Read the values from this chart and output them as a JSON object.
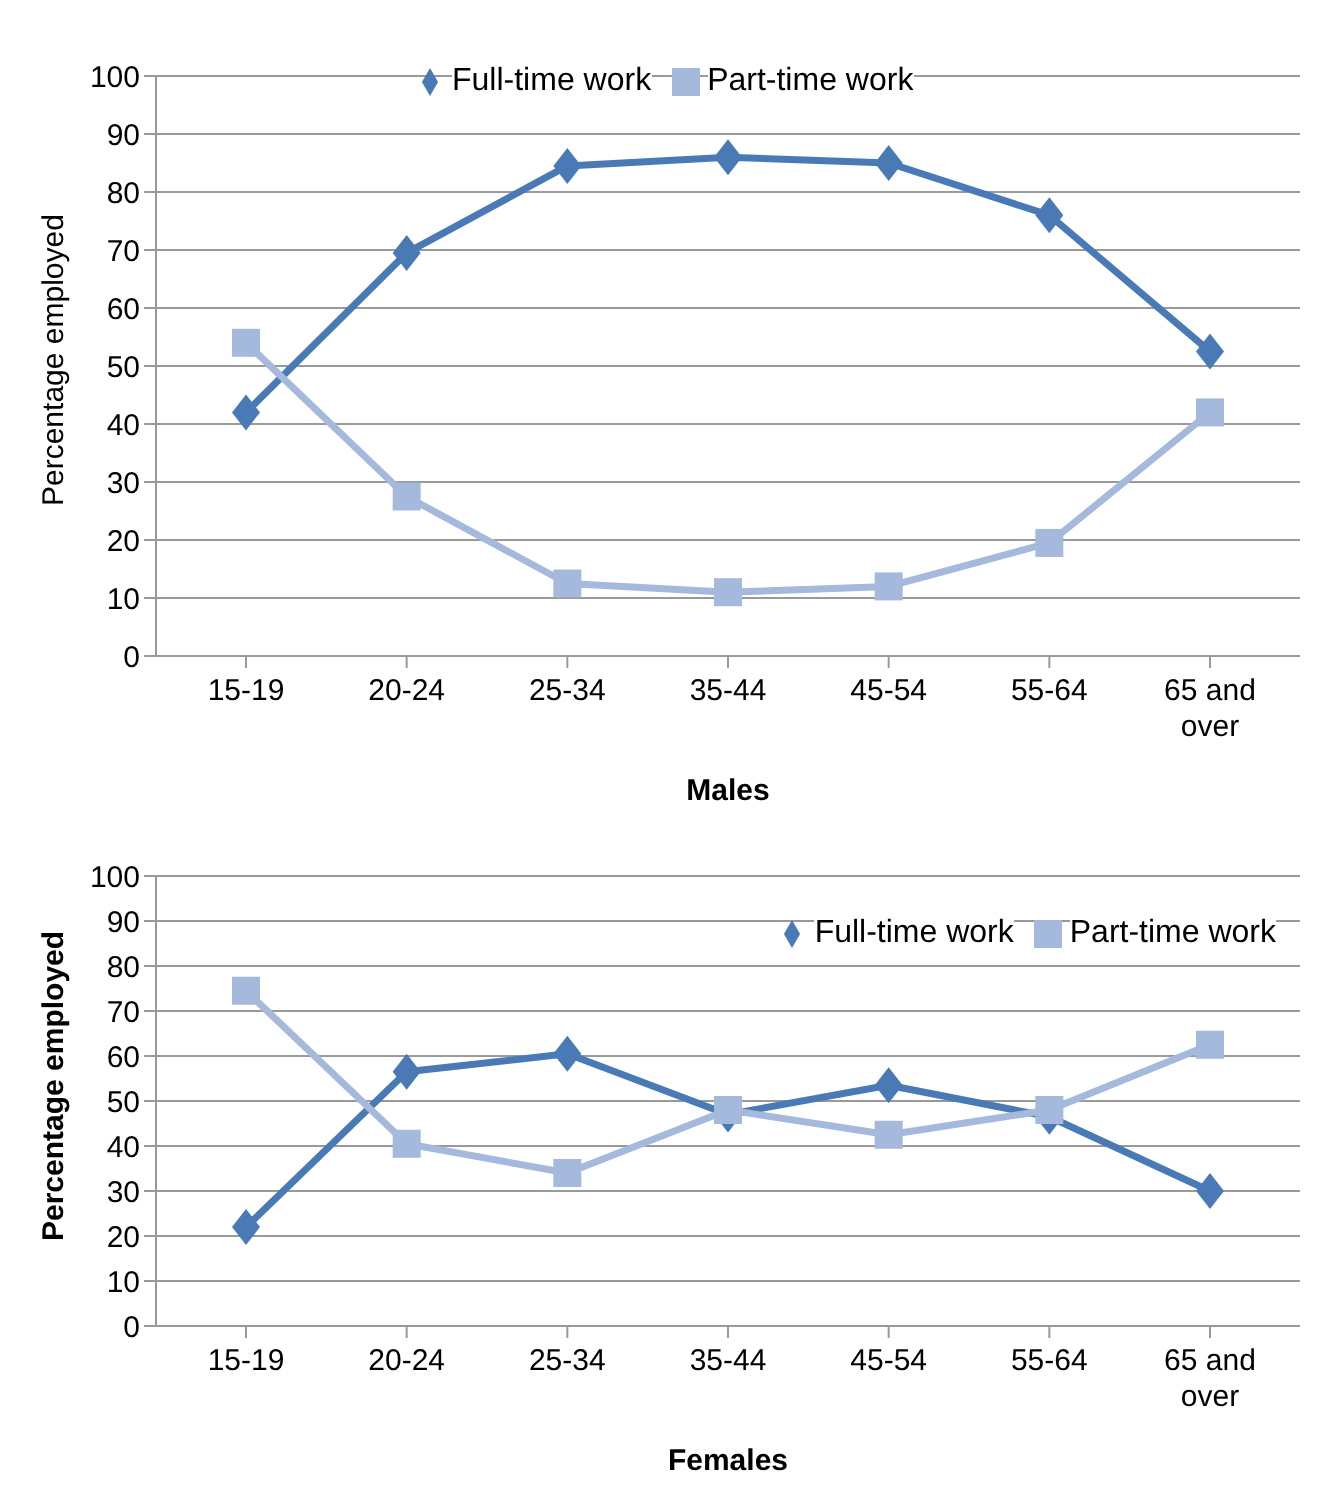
{
  "chart_data": [
    {
      "type": "line",
      "xlabel": "Males",
      "ylabel": "Percentage employed",
      "categories": [
        "15-19",
        "20-24",
        "25-34",
        "35-44",
        "45-54",
        "55-64",
        "65 and over"
      ],
      "series": [
        {
          "name": "Full-time work",
          "color": "#4a7ab5",
          "marker": "diamond",
          "values": [
            42,
            69.5,
            84.5,
            86,
            85,
            76,
            52.5
          ]
        },
        {
          "name": "Part-time work",
          "color": "#a4b9db",
          "marker": "square",
          "values": [
            54,
            27.5,
            12.5,
            11,
            12,
            19.5,
            42
          ]
        }
      ],
      "ylim": [
        0,
        100
      ],
      "yticks": [
        0,
        10,
        20,
        30,
        40,
        50,
        60,
        70,
        80,
        90,
        100
      ],
      "grid": "y",
      "legend": "top"
    },
    {
      "type": "line",
      "xlabel": "Females",
      "ylabel": "Percentage employed",
      "categories": [
        "15-19",
        "20-24",
        "25-34",
        "35-44",
        "45-54",
        "55-64",
        "65 and over"
      ],
      "series": [
        {
          "name": "Full-time work",
          "color": "#4a7ab5",
          "marker": "diamond",
          "values": [
            22,
            56.5,
            60.5,
            47,
            53.5,
            46.5,
            30
          ]
        },
        {
          "name": "Part-time work",
          "color": "#a4b9db",
          "marker": "square",
          "values": [
            74.5,
            40.5,
            34,
            48,
            42.5,
            48,
            62.5
          ]
        }
      ],
      "ylim": [
        0,
        100
      ],
      "yticks": [
        0,
        10,
        20,
        30,
        40,
        50,
        60,
        70,
        80,
        90,
        100
      ],
      "grid": "y",
      "legend": "top right"
    }
  ]
}
